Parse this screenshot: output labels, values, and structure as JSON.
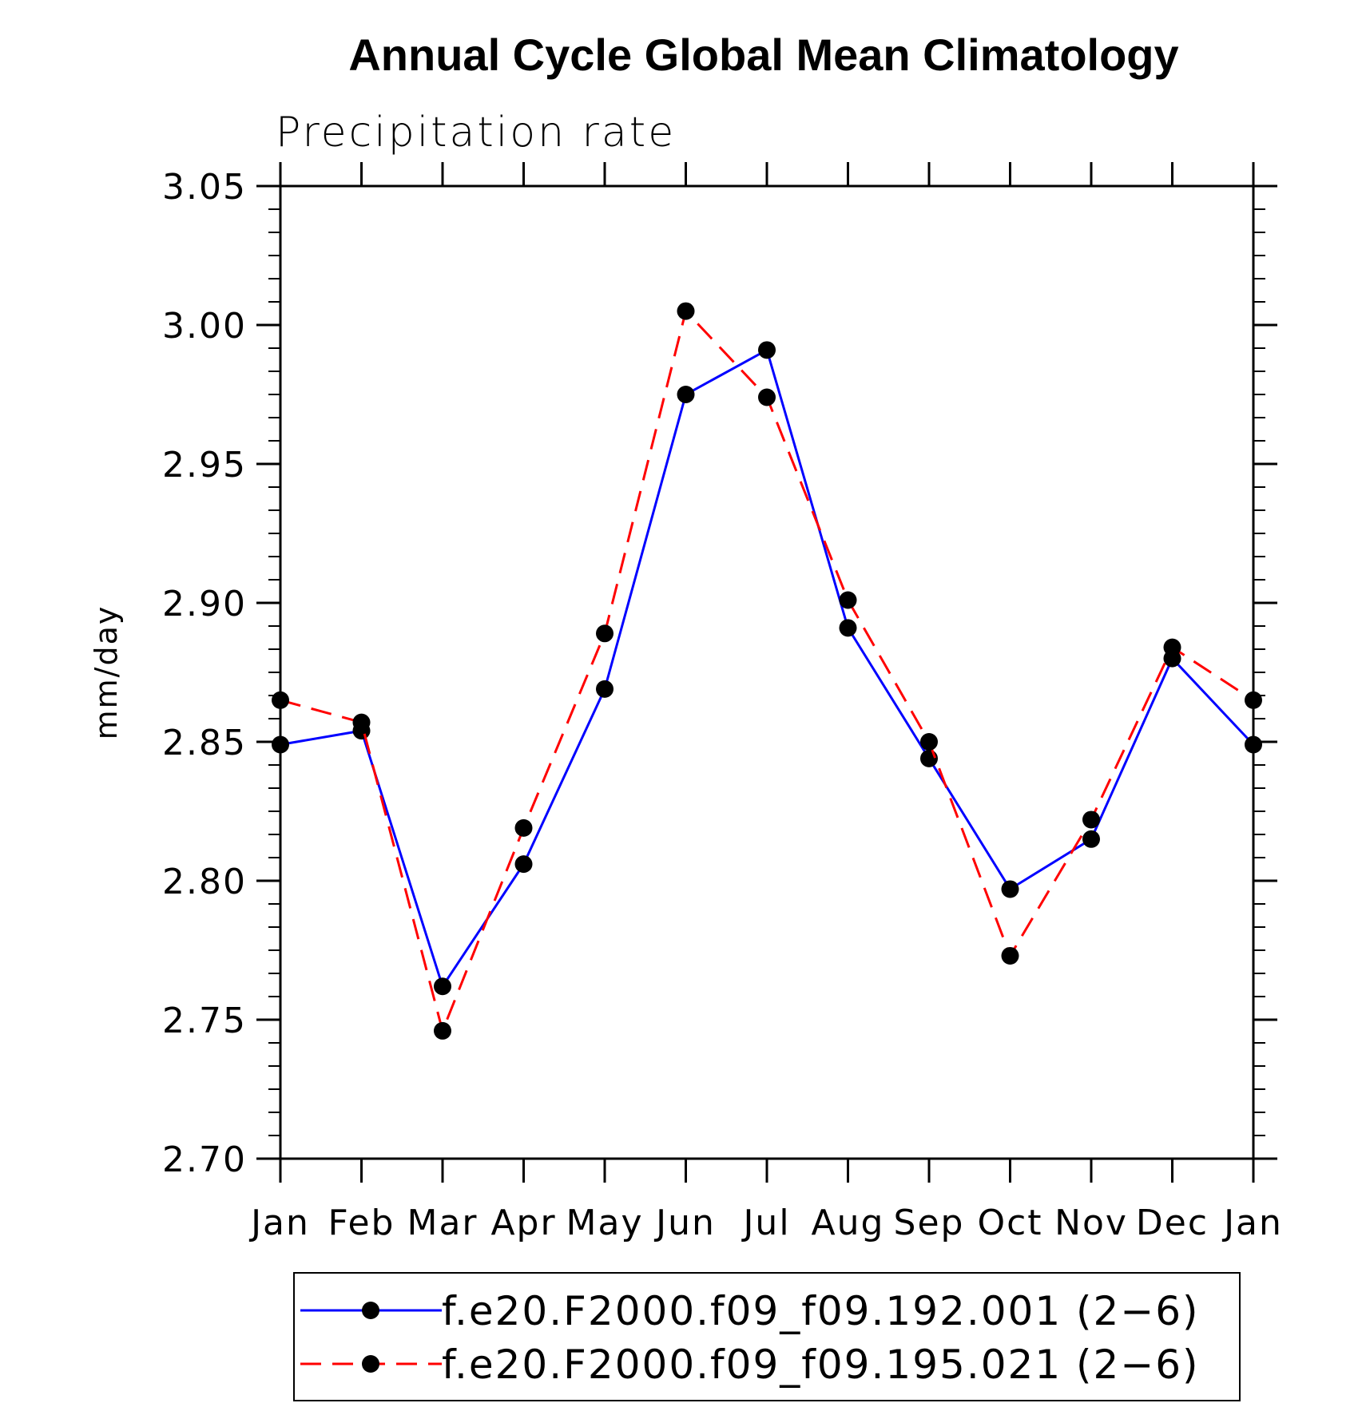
{
  "chart_data": {
    "type": "line",
    "title": "Annual Cycle Global Mean Climatology",
    "subtitle": "Precipitation rate",
    "xlabel": "",
    "ylabel": "mm/day",
    "categories": [
      "Jan",
      "Feb",
      "Mar",
      "Apr",
      "May",
      "Jun",
      "Jul",
      "Aug",
      "Sep",
      "Oct",
      "Nov",
      "Dec",
      "Jan"
    ],
    "ylim": [
      2.7,
      3.05
    ],
    "yticks": [
      "2.70",
      "2.75",
      "2.80",
      "2.85",
      "2.90",
      "2.95",
      "3.00",
      "3.05"
    ],
    "grid": false,
    "legend_position": "bottom",
    "series": [
      {
        "name": "f.e20.F2000.f09_f09.192.001 (2−6)",
        "color": "#0000ff",
        "dash": "solid",
        "values": [
          2.849,
          2.854,
          2.762,
          2.806,
          2.869,
          2.975,
          2.991,
          2.891,
          2.844,
          2.797,
          2.815,
          2.88,
          2.849
        ]
      },
      {
        "name": "f.e20.F2000.f09_f09.195.021 (2−6)",
        "color": "#ff0000",
        "dash": "dashed",
        "values": [
          2.865,
          2.857,
          2.746,
          2.819,
          2.889,
          3.005,
          2.974,
          2.901,
          2.85,
          2.773,
          2.822,
          2.884,
          2.865
        ]
      }
    ]
  }
}
